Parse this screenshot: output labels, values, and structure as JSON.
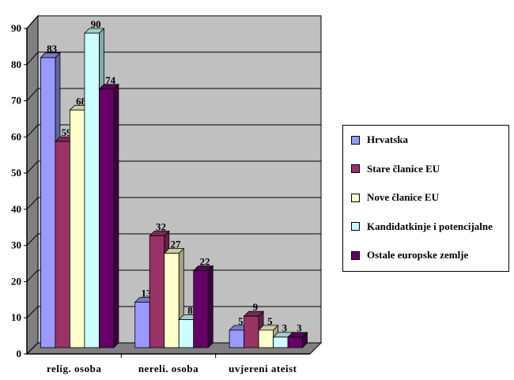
{
  "chart_data": {
    "type": "bar",
    "categories": [
      "relig. osoba",
      "nereli. osoba",
      "uvjereni ateist"
    ],
    "series": [
      {
        "name": "Hrvatska",
        "values": [
          83,
          13,
          5
        ]
      },
      {
        "name": "Stare članice EU",
        "values": [
          59,
          32,
          9
        ]
      },
      {
        "name": "Nove članice EU",
        "values": [
          68,
          27,
          5
        ]
      },
      {
        "name": "Kandidatkinje i potencijalne",
        "values": [
          90,
          8,
          3
        ]
      },
      {
        "name": "Ostale europske zemlje",
        "values": [
          74,
          22,
          3
        ]
      }
    ],
    "colors": [
      "#9999ff",
      "#993366",
      "#ffffcc",
      "#ccffff",
      "#660066"
    ],
    "title": "",
    "xlabel": "",
    "ylabel": "",
    "ylim": [
      0,
      90
    ],
    "yticks": [
      0,
      10,
      20,
      30,
      40,
      50,
      60,
      70,
      80,
      90
    ],
    "grid": true,
    "plot_background": "#c0c0c0",
    "legend_position": "right",
    "style": "3d-columns"
  }
}
